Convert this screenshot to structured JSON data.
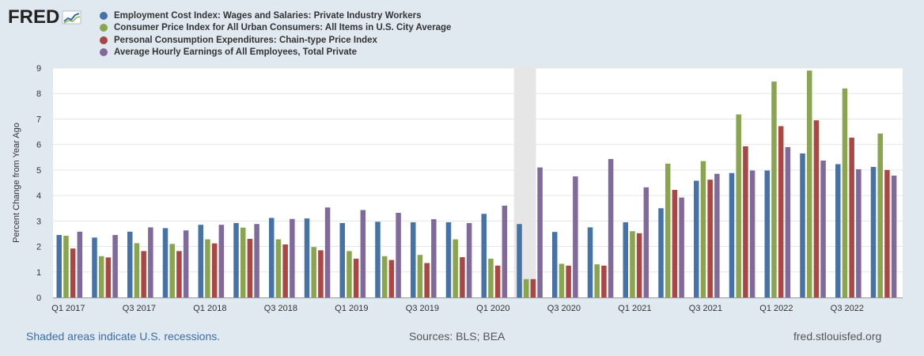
{
  "brand": "FRED",
  "footer": {
    "recession_note": "Shaded areas indicate U.S. recessions.",
    "sources": "Sources: BLS; BEA",
    "site": "fred.stlouisfed.org"
  },
  "chart_data": {
    "type": "bar",
    "title": "",
    "xlabel": "",
    "ylabel": "Percent Change from Year Ago",
    "ylim": [
      0,
      9
    ],
    "yticks": [
      0,
      1,
      2,
      3,
      4,
      5,
      6,
      7,
      8,
      9
    ],
    "grid": true,
    "legend_position": "top",
    "categories": [
      "Q1 2017",
      "Q2 2017",
      "Q3 2017",
      "Q4 2017",
      "Q1 2018",
      "Q2 2018",
      "Q3 2018",
      "Q4 2018",
      "Q1 2019",
      "Q2 2019",
      "Q3 2019",
      "Q4 2019",
      "Q1 2020",
      "Q2 2020",
      "Q3 2020",
      "Q4 2020",
      "Q1 2021",
      "Q2 2021",
      "Q3 2021",
      "Q4 2021",
      "Q1 2022",
      "Q2 2022",
      "Q3 2022",
      "Q4 2022"
    ],
    "tick_labels": [
      "Q1 2017",
      "Q3 2017",
      "Q1 2018",
      "Q3 2018",
      "Q1 2019",
      "Q3 2019",
      "Q1 2020",
      "Q3 2020",
      "Q1 2021",
      "Q3 2021",
      "Q1 2022",
      "Q3 2022"
    ],
    "recession_shading": {
      "label": "Q2 2020"
    },
    "series": [
      {
        "name": "Employment Cost Index: Wages and Salaries: Private Industry Workers",
        "color": "#4572a7",
        "values": [
          2.45,
          2.35,
          2.58,
          2.72,
          2.85,
          2.92,
          3.12,
          3.1,
          2.92,
          2.97,
          2.95,
          2.95,
          3.28,
          2.88,
          2.57,
          2.75,
          2.95,
          3.5,
          4.58,
          4.88,
          4.98,
          5.65,
          5.23,
          5.12
        ]
      },
      {
        "name": "Consumer Price Index for All Urban Consumers: All Items in U.S. City Average",
        "color": "#89a54e",
        "values": [
          2.42,
          1.62,
          2.13,
          2.1,
          2.28,
          2.74,
          2.28,
          1.98,
          1.82,
          1.62,
          1.67,
          2.28,
          1.52,
          0.72,
          1.32,
          1.3,
          2.6,
          5.25,
          5.35,
          7.18,
          8.47,
          8.9,
          8.2,
          6.43
        ]
      },
      {
        "name": "Personal Consumption Expenditures: Chain-type Price Index",
        "color": "#aa4643",
        "values": [
          1.92,
          1.57,
          1.82,
          1.82,
          2.12,
          2.3,
          2.08,
          1.85,
          1.52,
          1.47,
          1.35,
          1.58,
          1.25,
          0.72,
          1.25,
          1.25,
          2.52,
          4.22,
          4.62,
          5.93,
          6.72,
          6.95,
          6.27,
          5.0
        ]
      },
      {
        "name": "Average Hourly Earnings of All Employees, Total Private",
        "color": "#80699b",
        "values": [
          2.58,
          2.45,
          2.75,
          2.63,
          2.85,
          2.88,
          3.08,
          3.53,
          3.43,
          3.32,
          3.07,
          2.92,
          3.6,
          5.1,
          4.75,
          5.43,
          4.32,
          3.92,
          4.85,
          4.98,
          5.9,
          5.37,
          5.03,
          4.78
        ]
      }
    ]
  }
}
